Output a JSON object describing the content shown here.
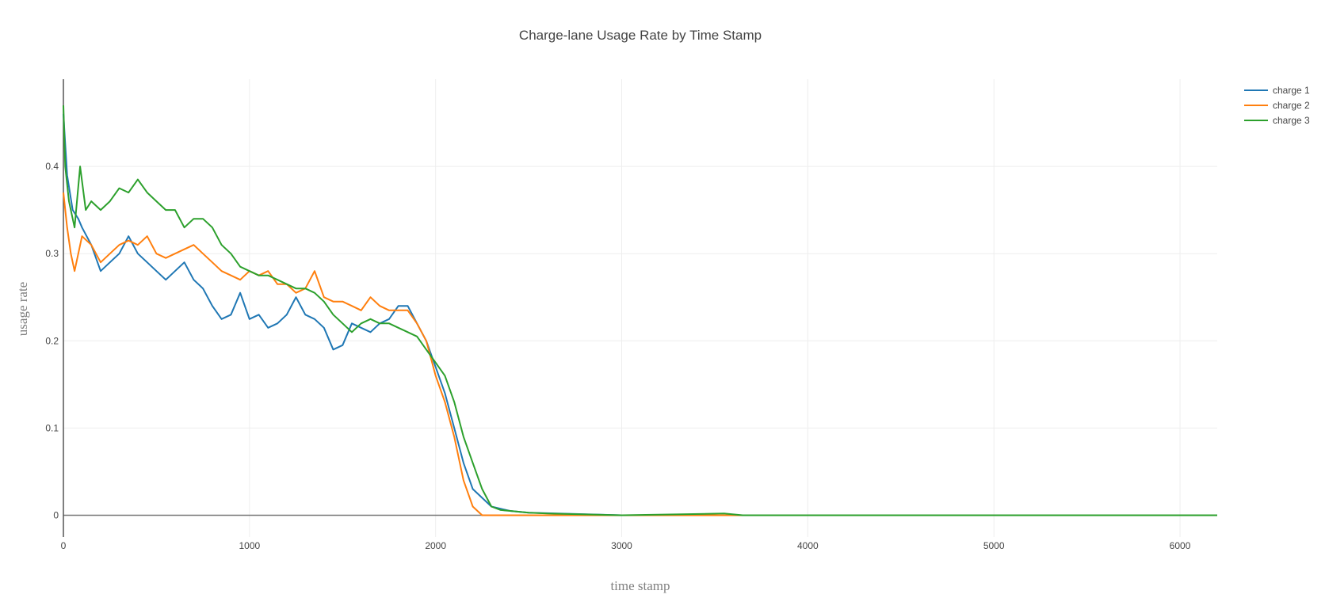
{
  "chart_data": {
    "type": "line",
    "title": "Charge-lane Usage Rate by Time Stamp",
    "xlabel": "time stamp",
    "ylabel": "usage rate",
    "xlim": [
      0,
      6200
    ],
    "ylim": [
      -0.025,
      0.5
    ],
    "x_ticks": [
      0,
      1000,
      2000,
      3000,
      4000,
      5000,
      6000
    ],
    "y_ticks": [
      0,
      0.1,
      0.2,
      0.3,
      0.4
    ],
    "y_tick_labels": [
      "0",
      "0.1",
      "0.2",
      "0.3",
      "0.4"
    ],
    "grid": true,
    "legend_position": "top-right",
    "series": [
      {
        "name": "charge 1",
        "color": "#1f77b4",
        "points": [
          [
            0,
            0.46
          ],
          [
            20,
            0.39
          ],
          [
            50,
            0.35
          ],
          [
            80,
            0.34
          ],
          [
            100,
            0.33
          ],
          [
            150,
            0.31
          ],
          [
            200,
            0.28
          ],
          [
            250,
            0.29
          ],
          [
            300,
            0.3
          ],
          [
            350,
            0.32
          ],
          [
            400,
            0.3
          ],
          [
            450,
            0.29
          ],
          [
            500,
            0.28
          ],
          [
            550,
            0.27
          ],
          [
            600,
            0.28
          ],
          [
            650,
            0.29
          ],
          [
            700,
            0.27
          ],
          [
            750,
            0.26
          ],
          [
            800,
            0.24
          ],
          [
            850,
            0.225
          ],
          [
            900,
            0.23
          ],
          [
            950,
            0.255
          ],
          [
            1000,
            0.225
          ],
          [
            1050,
            0.23
          ],
          [
            1100,
            0.215
          ],
          [
            1150,
            0.22
          ],
          [
            1200,
            0.23
          ],
          [
            1250,
            0.25
          ],
          [
            1300,
            0.23
          ],
          [
            1350,
            0.225
          ],
          [
            1400,
            0.215
          ],
          [
            1450,
            0.19
          ],
          [
            1500,
            0.195
          ],
          [
            1550,
            0.22
          ],
          [
            1600,
            0.215
          ],
          [
            1650,
            0.21
          ],
          [
            1700,
            0.22
          ],
          [
            1750,
            0.225
          ],
          [
            1800,
            0.24
          ],
          [
            1850,
            0.24
          ],
          [
            1900,
            0.22
          ],
          [
            1950,
            0.2
          ],
          [
            2000,
            0.17
          ],
          [
            2050,
            0.14
          ],
          [
            2100,
            0.1
          ],
          [
            2150,
            0.06
          ],
          [
            2200,
            0.03
          ],
          [
            2250,
            0.02
          ],
          [
            2300,
            0.01
          ],
          [
            2400,
            0.005
          ],
          [
            2500,
            0.003
          ],
          [
            3000,
            0.0
          ],
          [
            6200,
            0.0
          ]
        ]
      },
      {
        "name": "charge 2",
        "color": "#ff7f0e",
        "points": [
          [
            0,
            0.37
          ],
          [
            20,
            0.33
          ],
          [
            40,
            0.3
          ],
          [
            60,
            0.28
          ],
          [
            80,
            0.3
          ],
          [
            100,
            0.32
          ],
          [
            150,
            0.31
          ],
          [
            200,
            0.29
          ],
          [
            250,
            0.3
          ],
          [
            300,
            0.31
          ],
          [
            350,
            0.315
          ],
          [
            400,
            0.31
          ],
          [
            450,
            0.32
          ],
          [
            500,
            0.3
          ],
          [
            550,
            0.295
          ],
          [
            600,
            0.3
          ],
          [
            650,
            0.305
          ],
          [
            700,
            0.31
          ],
          [
            750,
            0.3
          ],
          [
            800,
            0.29
          ],
          [
            850,
            0.28
          ],
          [
            900,
            0.275
          ],
          [
            950,
            0.27
          ],
          [
            1000,
            0.28
          ],
          [
            1050,
            0.275
          ],
          [
            1100,
            0.28
          ],
          [
            1150,
            0.265
          ],
          [
            1200,
            0.265
          ],
          [
            1250,
            0.255
          ],
          [
            1300,
            0.26
          ],
          [
            1350,
            0.28
          ],
          [
            1400,
            0.25
          ],
          [
            1450,
            0.245
          ],
          [
            1500,
            0.245
          ],
          [
            1550,
            0.24
          ],
          [
            1600,
            0.235
          ],
          [
            1650,
            0.25
          ],
          [
            1700,
            0.24
          ],
          [
            1750,
            0.235
          ],
          [
            1800,
            0.235
          ],
          [
            1850,
            0.235
          ],
          [
            1900,
            0.22
          ],
          [
            1950,
            0.2
          ],
          [
            2000,
            0.16
          ],
          [
            2050,
            0.13
          ],
          [
            2100,
            0.09
          ],
          [
            2150,
            0.04
          ],
          [
            2200,
            0.01
          ],
          [
            2250,
            0.0
          ],
          [
            6200,
            0.0
          ]
        ]
      },
      {
        "name": "charge 3",
        "color": "#2ca02c",
        "points": [
          [
            0,
            0.47
          ],
          [
            10,
            0.4
          ],
          [
            30,
            0.36
          ],
          [
            60,
            0.33
          ],
          [
            90,
            0.4
          ],
          [
            120,
            0.35
          ],
          [
            150,
            0.36
          ],
          [
            200,
            0.35
          ],
          [
            250,
            0.36
          ],
          [
            300,
            0.375
          ],
          [
            350,
            0.37
          ],
          [
            400,
            0.385
          ],
          [
            450,
            0.37
          ],
          [
            500,
            0.36
          ],
          [
            550,
            0.35
          ],
          [
            600,
            0.35
          ],
          [
            650,
            0.33
          ],
          [
            700,
            0.34
          ],
          [
            750,
            0.34
          ],
          [
            800,
            0.33
          ],
          [
            850,
            0.31
          ],
          [
            900,
            0.3
          ],
          [
            950,
            0.285
          ],
          [
            1000,
            0.28
          ],
          [
            1050,
            0.275
          ],
          [
            1100,
            0.275
          ],
          [
            1150,
            0.27
          ],
          [
            1200,
            0.265
          ],
          [
            1250,
            0.26
          ],
          [
            1300,
            0.26
          ],
          [
            1350,
            0.255
          ],
          [
            1400,
            0.245
          ],
          [
            1450,
            0.23
          ],
          [
            1500,
            0.22
          ],
          [
            1550,
            0.21
          ],
          [
            1600,
            0.22
          ],
          [
            1650,
            0.225
          ],
          [
            1700,
            0.22
          ],
          [
            1750,
            0.22
          ],
          [
            1800,
            0.215
          ],
          [
            1850,
            0.21
          ],
          [
            1900,
            0.205
          ],
          [
            1950,
            0.19
          ],
          [
            2000,
            0.175
          ],
          [
            2050,
            0.16
          ],
          [
            2100,
            0.13
          ],
          [
            2150,
            0.09
          ],
          [
            2200,
            0.06
          ],
          [
            2250,
            0.03
          ],
          [
            2300,
            0.01
          ],
          [
            2350,
            0.006
          ],
          [
            2400,
            0.005
          ],
          [
            2500,
            0.003
          ],
          [
            2600,
            0.002
          ],
          [
            2800,
            0.001
          ],
          [
            3000,
            0.0
          ],
          [
            3550,
            0.002
          ],
          [
            3650,
            0.0
          ],
          [
            6200,
            0.0
          ]
        ]
      }
    ]
  }
}
